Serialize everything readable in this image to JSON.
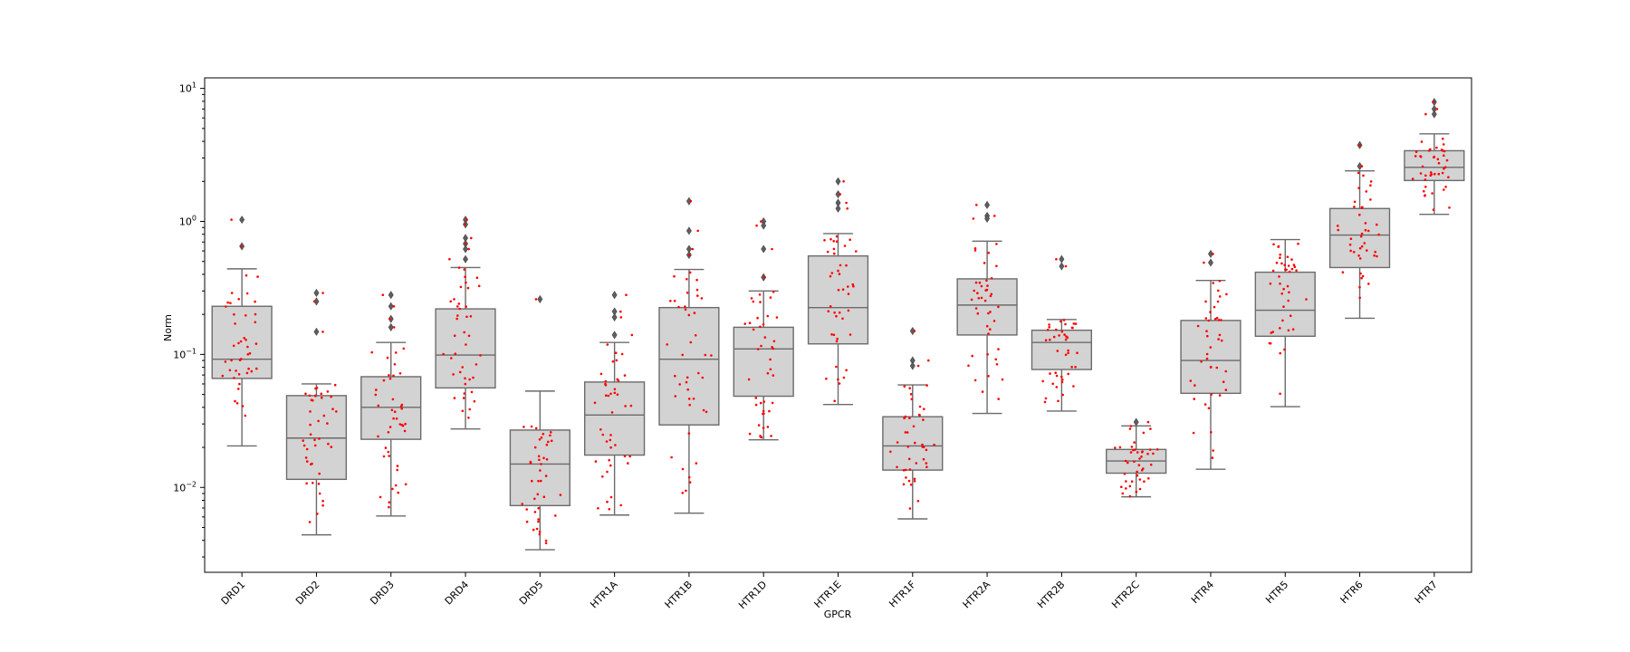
{
  "chart_data": {
    "type": "boxplot",
    "xlabel": "GPCR",
    "ylabel": "Norm",
    "yscale": "log",
    "ylim": [
      0.0023,
      12
    ],
    "yticks": [
      {
        "value": 0.01,
        "base": "10",
        "exp": "−2"
      },
      {
        "value": 0.1,
        "base": "10",
        "exp": "−1"
      },
      {
        "value": 1,
        "base": "10",
        "exp": "0"
      },
      {
        "value": 10,
        "base": "10",
        "exp": "1"
      }
    ],
    "box_color": "#d3d3d3",
    "edge_color": "#6b6b6b",
    "point_color": "#ff0000",
    "categories": [
      "DRD1",
      "DRD2",
      "DRD3",
      "DRD4",
      "DRD5",
      "HTR1A",
      "HTR1B",
      "HTR1D",
      "HTR1E",
      "HTR1F",
      "HTR2A",
      "HTR2B",
      "HTR2C",
      "HTR4",
      "HTR5",
      "HTR6",
      "HTR7"
    ],
    "boxes": [
      {
        "name": "DRD1",
        "whislo": 0.0205,
        "q1": 0.066,
        "med": 0.092,
        "q3": 0.23,
        "whishi": 0.44,
        "fliers": [
          1.03,
          0.65
        ]
      },
      {
        "name": "DRD2",
        "whislo": 0.0044,
        "q1": 0.0115,
        "med": 0.0235,
        "q3": 0.049,
        "whishi": 0.06,
        "fliers": [
          0.29,
          0.25,
          0.148
        ]
      },
      {
        "name": "DRD3",
        "whislo": 0.0061,
        "q1": 0.023,
        "med": 0.04,
        "q3": 0.068,
        "whishi": 0.123,
        "fliers": [
          0.28,
          0.23,
          0.185,
          0.16
        ]
      },
      {
        "name": "DRD4",
        "whislo": 0.0275,
        "q1": 0.056,
        "med": 0.099,
        "q3": 0.22,
        "whishi": 0.45,
        "fliers": [
          1.03,
          0.95,
          0.75,
          0.68,
          0.62,
          0.52
        ]
      },
      {
        "name": "DRD5",
        "whislo": 0.0034,
        "q1": 0.0073,
        "med": 0.015,
        "q3": 0.027,
        "whishi": 0.053,
        "fliers": [
          0.26
        ]
      },
      {
        "name": "HTR1A",
        "whislo": 0.0062,
        "q1": 0.0175,
        "med": 0.035,
        "q3": 0.062,
        "whishi": 0.123,
        "fliers": [
          0.28,
          0.21,
          0.19,
          0.14
        ]
      },
      {
        "name": "HTR1B",
        "whislo": 0.0064,
        "q1": 0.0295,
        "med": 0.092,
        "q3": 0.225,
        "whishi": 0.435,
        "fliers": [
          1.42,
          0.85,
          0.62,
          0.56
        ]
      },
      {
        "name": "HTR1D",
        "whislo": 0.0228,
        "q1": 0.0485,
        "med": 0.11,
        "q3": 0.16,
        "whishi": 0.3,
        "fliers": [
          1.0,
          0.93,
          0.62,
          0.38
        ]
      },
      {
        "name": "HTR1E",
        "whislo": 0.042,
        "q1": 0.12,
        "med": 0.225,
        "q3": 0.55,
        "whishi": 0.81,
        "fliers": [
          2.0,
          1.6,
          1.38,
          1.25
        ]
      },
      {
        "name": "HTR1F",
        "whislo": 0.0058,
        "q1": 0.0135,
        "med": 0.0205,
        "q3": 0.034,
        "whishi": 0.059,
        "fliers": [
          0.15,
          0.09,
          0.082
        ]
      },
      {
        "name": "HTR2A",
        "whislo": 0.036,
        "q1": 0.14,
        "med": 0.235,
        "q3": 0.37,
        "whishi": 0.71,
        "fliers": [
          1.33,
          1.1,
          1.05
        ]
      },
      {
        "name": "HTR2B",
        "whislo": 0.0375,
        "q1": 0.077,
        "med": 0.123,
        "q3": 0.152,
        "whishi": 0.183,
        "fliers": [
          0.52,
          0.46
        ]
      },
      {
        "name": "HTR2C",
        "whislo": 0.0085,
        "q1": 0.0128,
        "med": 0.0158,
        "q3": 0.0193,
        "whishi": 0.029,
        "fliers": [
          0.031
        ]
      },
      {
        "name": "HTR4",
        "whislo": 0.0137,
        "q1": 0.051,
        "med": 0.09,
        "q3": 0.18,
        "whishi": 0.36,
        "fliers": [
          0.57,
          0.49
        ]
      },
      {
        "name": "HTR5",
        "whislo": 0.0405,
        "q1": 0.137,
        "med": 0.215,
        "q3": 0.415,
        "whishi": 0.73,
        "fliers": []
      },
      {
        "name": "HTR6",
        "whislo": 0.187,
        "q1": 0.45,
        "med": 0.79,
        "q3": 1.25,
        "whishi": 2.4,
        "fliers": [
          3.75,
          2.6
        ]
      },
      {
        "name": "HTR7",
        "whislo": 1.13,
        "q1": 2.03,
        "med": 2.55,
        "q3": 3.4,
        "whishi": 4.55,
        "fliers": [
          7.9,
          7.0,
          6.4
        ]
      }
    ]
  }
}
